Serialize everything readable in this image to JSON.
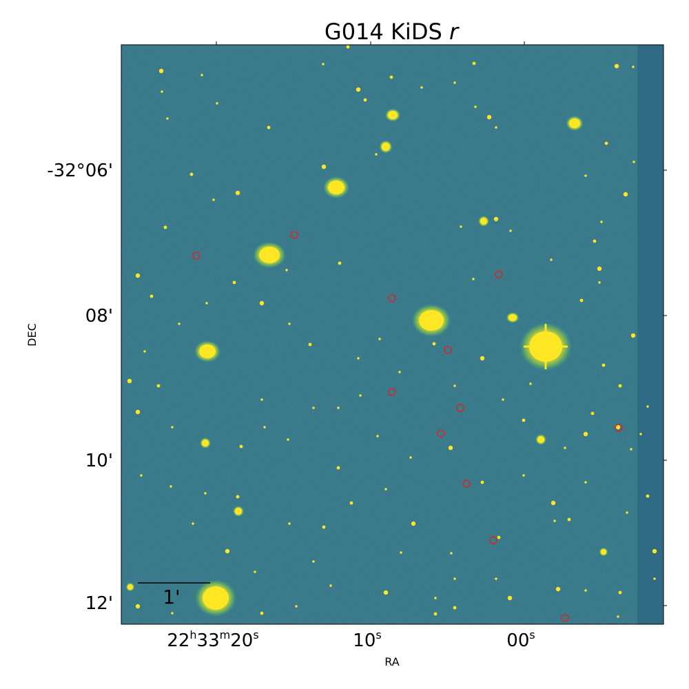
{
  "title": {
    "main": "G014 KiDS ",
    "band": "r"
  },
  "axes": {
    "xlabel": "RA",
    "ylabel": "DEC",
    "x_ticks": [
      {
        "hours": "22",
        "minutes": "33",
        "seconds": "20",
        "label_h": "h",
        "label_m": "m",
        "label_s": "s"
      },
      {
        "seconds": "10",
        "label_s": "s"
      },
      {
        "seconds": "00",
        "label_s": "s"
      }
    ],
    "y_ticks": [
      "-32°06'",
      "08'",
      "10'",
      "12'"
    ]
  },
  "scale_bar": {
    "label": "1'"
  },
  "image": {
    "colormap": "viridis",
    "background_color": "#2e6e83",
    "source_color": "#fde725",
    "marker_color": "#d62728"
  }
}
